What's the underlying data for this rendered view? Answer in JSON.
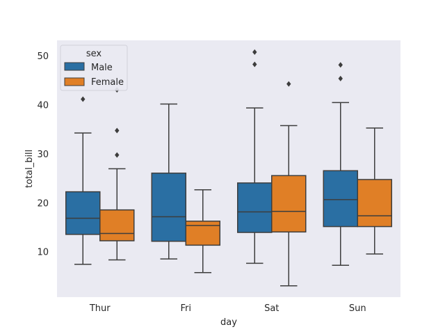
{
  "chart_data": {
    "type": "box",
    "xlabel": "day",
    "ylabel": "total_bill",
    "categories": [
      "Thur",
      "Fri",
      "Sat",
      "Sun"
    ],
    "yticks": [
      10,
      20,
      30,
      40,
      50
    ],
    "ylim": [
      0.8,
      53.2
    ],
    "grid": false,
    "legend": {
      "title": "sex",
      "position": "top-left"
    },
    "colors": {
      "Male": "#2a6fa3",
      "Female": "#e07f26",
      "background": "#eaeaf2",
      "lines": "#3d3d3d"
    },
    "series": [
      {
        "name": "Male",
        "boxes": [
          {
            "category": "Thur",
            "whislo": 7.5,
            "q1": 13.6,
            "median": 16.9,
            "q3": 22.3,
            "whishi": 34.3,
            "fliers": [
              41.2
            ]
          },
          {
            "category": "Fri",
            "whislo": 8.6,
            "q1": 12.2,
            "median": 17.2,
            "q3": 26.1,
            "whishi": 40.2,
            "fliers": []
          },
          {
            "category": "Sat",
            "whislo": 7.7,
            "q1": 14.0,
            "median": 18.2,
            "q3": 24.1,
            "whishi": 39.4,
            "fliers": [
              48.3,
              50.8
            ]
          },
          {
            "category": "Sun",
            "whislo": 7.3,
            "q1": 15.2,
            "median": 20.7,
            "q3": 26.6,
            "whishi": 40.5,
            "fliers": [
              45.4,
              48.2
            ]
          }
        ]
      },
      {
        "name": "Female",
        "boxes": [
          {
            "category": "Thur",
            "whislo": 8.4,
            "q1": 12.3,
            "median": 13.8,
            "q3": 18.6,
            "whishi": 27.0,
            "fliers": [
              29.8,
              34.8,
              43.1
            ]
          },
          {
            "category": "Fri",
            "whislo": 5.8,
            "q1": 11.4,
            "median": 15.4,
            "q3": 16.3,
            "whishi": 22.7,
            "fliers": []
          },
          {
            "category": "Sat",
            "whislo": 3.1,
            "q1": 14.1,
            "median": 18.3,
            "q3": 25.6,
            "whishi": 35.8,
            "fliers": [
              44.3
            ]
          },
          {
            "category": "Sun",
            "whislo": 9.6,
            "q1": 15.2,
            "median": 17.4,
            "q3": 24.8,
            "whishi": 35.3,
            "fliers": []
          }
        ]
      }
    ]
  }
}
